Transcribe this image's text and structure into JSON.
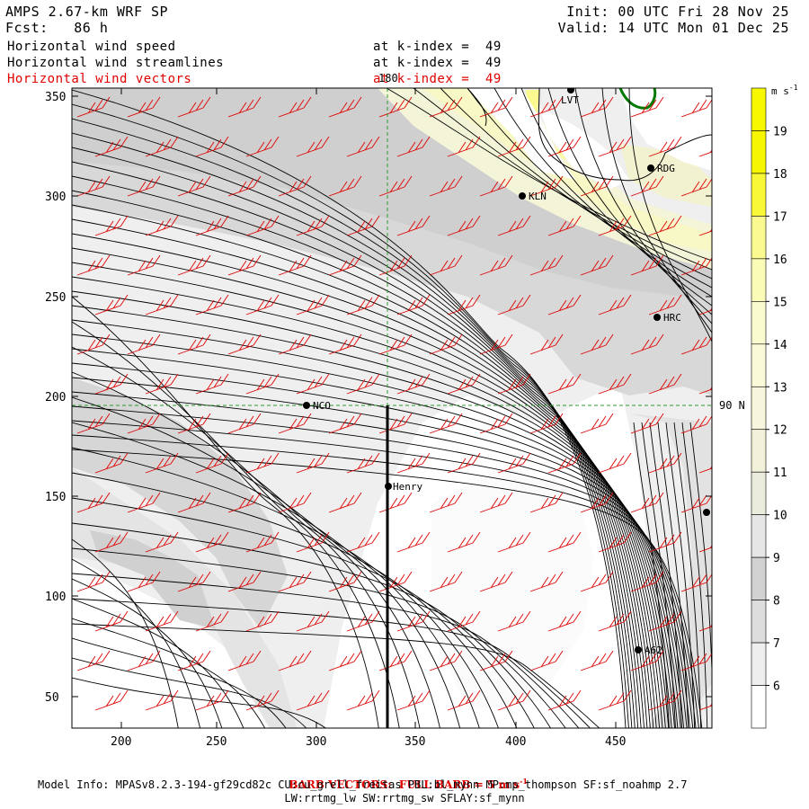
{
  "header": {
    "title": "AMPS 2.67-km WRF SP",
    "forecast": "Fcst:   86 h",
    "init": "Init: 00 UTC Fri 28 Nov 25",
    "valid": "Valid: 14 UTC Mon 01 Dec 25",
    "fields": [
      {
        "name": "Horizontal wind speed",
        "level": "at k-index =  49",
        "color": "#000000"
      },
      {
        "name": "Horizontal wind streamlines",
        "level": "at k-index =  49",
        "color": "#000000"
      },
      {
        "name": "Horizontal wind vectors",
        "level": "at k-index =  49",
        "color": "#e00000"
      }
    ]
  },
  "map": {
    "x_ticks": [
      "200",
      "250",
      "300",
      "350",
      "400",
      "450"
    ],
    "y_ticks": [
      "350",
      "300",
      "250",
      "200",
      "150",
      "100",
      "50"
    ],
    "gridlines": {
      "longitude_label": "180",
      "latitude_label": "90 N"
    },
    "stations": [
      {
        "label": "LVT"
      },
      {
        "label": "RDG"
      },
      {
        "label": "KLN"
      },
      {
        "label": "HRC"
      },
      {
        "label": "NCO"
      },
      {
        "label": "Henry"
      },
      {
        "label": "A62"
      },
      {
        "label": ""
      }
    ]
  },
  "colorbar": {
    "unit": "m s",
    "unit_exp": "-1",
    "levels": [
      "6",
      "7",
      "8",
      "9",
      "10",
      "11",
      "12",
      "13",
      "14",
      "15",
      "16",
      "17",
      "18",
      "19"
    ],
    "colors": [
      "#ffffff",
      "#eeeeee",
      "#dddddd",
      "#d2d2d2",
      "#e6e6e6",
      "#ececdc",
      "#f2f2da",
      "#f6f6dc",
      "#fafad8",
      "#fbfbd0",
      "#fbfbb8",
      "#fafa90",
      "#f8f838",
      "#f6f600",
      "#f8f800"
    ]
  },
  "footer": {
    "barb_note": "BARB VECTORS:  FULL BARB = 5 m s",
    "barb_exp": "-1",
    "model_info": "Model Info: MPASv8.2.3-194-gf29cd82c CU:cu_grell_freitas PBL:bl_mynn MP:mp_thompson SF:sf_noahmp 2.7",
    "model_info2": "LW:rrtmg_lw SW:rrtmg_sw SFLAY:sf_mynn"
  },
  "style": {
    "barb_color": "#e00000",
    "grid_color": "#2e9b2e",
    "coast_color": "#007a00"
  }
}
